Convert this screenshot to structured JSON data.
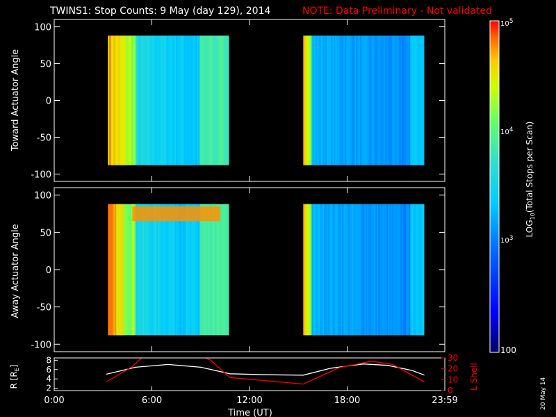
{
  "title": "TWINS1: Stop Counts:  9 May (day 129), 2014",
  "note": "NOTE: Data Preliminary - Not validated",
  "side_date": "20 May 14",
  "colors": {
    "background": "#000000",
    "axes": "#ffffff",
    "note": "#ff0000",
    "r_line": "#ffffff",
    "l_shell_line": "#ff0000"
  },
  "chart_data": [
    {
      "type": "heatmap",
      "ylabel": "Toward Actuator Angle",
      "ylim": [
        -110,
        110
      ],
      "yticks": [
        -100,
        -50,
        0,
        50,
        100
      ],
      "x_unit": "hours UT",
      "xlim": [
        0,
        24
      ],
      "angle_range": [
        -88,
        88
      ],
      "data_windows": [
        [
          3.3,
          10.75
        ],
        [
          15.3,
          22.75
        ]
      ]
    },
    {
      "type": "heatmap",
      "ylabel": "Away Actuator Angle",
      "ylim": [
        -110,
        110
      ],
      "yticks": [
        -100,
        -50,
        0,
        50,
        100
      ],
      "x_unit": "hours UT",
      "xlim": [
        0,
        24
      ],
      "angle_range": [
        -88,
        88
      ],
      "data_windows": [
        [
          3.3,
          10.75
        ],
        [
          15.3,
          22.75
        ]
      ]
    },
    {
      "type": "line",
      "xlabel": "Time (UT)",
      "xticks": [
        "0:00",
        "6:00",
        "12:00",
        "18:00",
        "23:59"
      ],
      "xtick_hours": [
        0,
        6,
        12,
        18,
        24
      ],
      "xlim": [
        0,
        24
      ],
      "ylabel_left": "R [R",
      "ylabel_left_sub": "E",
      "ylabel_left_end": "]",
      "ylim_left": [
        1.5,
        8.5
      ],
      "yticks_left": [
        2,
        4,
        6,
        8
      ],
      "ylabel_right": "L Shell",
      "ylim_right": [
        0,
        30
      ],
      "yticks_right": [
        0,
        10,
        20,
        30
      ],
      "series": [
        {
          "axis": "left",
          "x": [
            3.2,
            5,
            7,
            9,
            10.8,
            13,
            15.3,
            17,
            19,
            20.5,
            22,
            22.75
          ],
          "y": [
            5.0,
            6.5,
            7.1,
            6.5,
            5.1,
            4.9,
            4.8,
            6.3,
            7.2,
            6.9,
            5.8,
            4.8
          ]
        },
        {
          "axis": "right",
          "x": [
            3.2,
            4.8,
            5.5,
            9.0,
            9.6,
            10.8,
            15.3,
            17.5,
            19.5,
            20.8,
            22.75
          ],
          "y": [
            8,
            22,
            32,
            32,
            28,
            12,
            6,
            21,
            27,
            24,
            8
          ]
        }
      ]
    }
  ],
  "colorbar": {
    "label": "LOG",
    "label_sub": "10",
    "label_rest": "(Total Stops per Scan)",
    "tick_top": "10",
    "tick_top_exp": "5",
    "tick_mid": "10",
    "tick_mid_exp": "4",
    "tick_low": "10",
    "tick_low_exp": "3",
    "tick_bottom": "100",
    "range": [
      2,
      5
    ]
  }
}
